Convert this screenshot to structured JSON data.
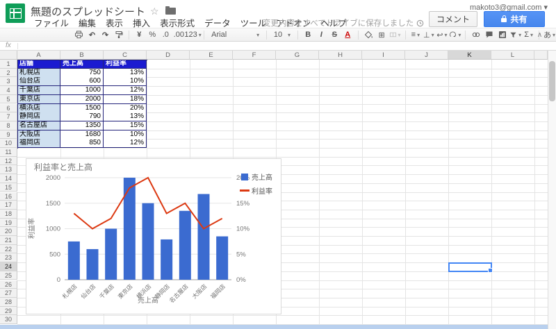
{
  "titlebar": {
    "doc_title": "無題のスプレッドシート",
    "star": "☆",
    "account": "makoto3@gmail.com ▾",
    "save_status": "変更内容をすべてドライブに保存しました",
    "comment_button": "コメント",
    "share_button": "共有"
  },
  "menus": [
    "ファイル",
    "編集",
    "表示",
    "挿入",
    "表示形式",
    "データ",
    "ツール",
    "アドオン",
    "ヘルプ"
  ],
  "toolbar": {
    "font_name": "Arial",
    "font_size": "10",
    "glyphs": {
      "undo": "↶",
      "redo": "↷",
      "currency": "¥",
      "percent": "%",
      "dec_dec": ".0",
      "dec_inc": ".00",
      "more_formats": "123",
      "bold": "B",
      "italic": "I",
      "strike": "S",
      "text_color": "A",
      "borders": "⊞",
      "align": "≡",
      "valign": "⊥",
      "wrap": "↩",
      "sum": "Σ",
      "input_tools": "あ",
      "collapse": "∧",
      "caret": "▾"
    }
  },
  "formula_bar": {
    "fx_label": "fx"
  },
  "grid": {
    "columns": [
      "A",
      "B",
      "C",
      "D",
      "E",
      "F",
      "G",
      "H",
      "I",
      "J",
      "K",
      "L"
    ],
    "row_count": 30,
    "selected_column": "K",
    "selected_row": 24
  },
  "table": {
    "headers": [
      "店舗",
      "売上高",
      "利益率"
    ],
    "rows": [
      [
        "札幌店",
        "750",
        "13%"
      ],
      [
        "仙台店",
        "600",
        "10%"
      ],
      [
        "千葉店",
        "1000",
        "12%"
      ],
      [
        "東京店",
        "2000",
        "18%"
      ],
      [
        "横浜店",
        "1500",
        "20%"
      ],
      [
        "静岡店",
        "790",
        "13%"
      ],
      [
        "名古屋店",
        "1350",
        "15%"
      ],
      [
        "大阪店",
        "1680",
        "10%"
      ],
      [
        "福岡店",
        "850",
        "12%"
      ]
    ]
  },
  "chart_data": {
    "type": "combo",
    "title": "利益率と売上高",
    "categories": [
      "札幌店",
      "仙台店",
      "千葉店",
      "東京店",
      "横浜店",
      "静岡店",
      "名古屋店",
      "大阪店",
      "福岡店"
    ],
    "series": [
      {
        "name": "売上高",
        "type": "bar",
        "color": "#3b6bd0",
        "axis": "left",
        "values": [
          750,
          600,
          1000,
          2000,
          1500,
          790,
          1350,
          1680,
          850
        ]
      },
      {
        "name": "利益率",
        "type": "line",
        "color": "#dc3912",
        "axis": "right",
        "values": [
          13,
          10,
          12,
          18,
          20,
          13,
          15,
          10,
          12
        ]
      }
    ],
    "left_axis": {
      "ticks": [
        0,
        500,
        1000,
        1500,
        2000
      ],
      "max": 2000
    },
    "right_axis": {
      "ticks": [
        "0%",
        "5%",
        "10%",
        "15%",
        "20%"
      ],
      "max": 20
    },
    "xlabel": "売上高",
    "ylabel": "利益率",
    "legend_position": "right",
    "grid": true
  }
}
